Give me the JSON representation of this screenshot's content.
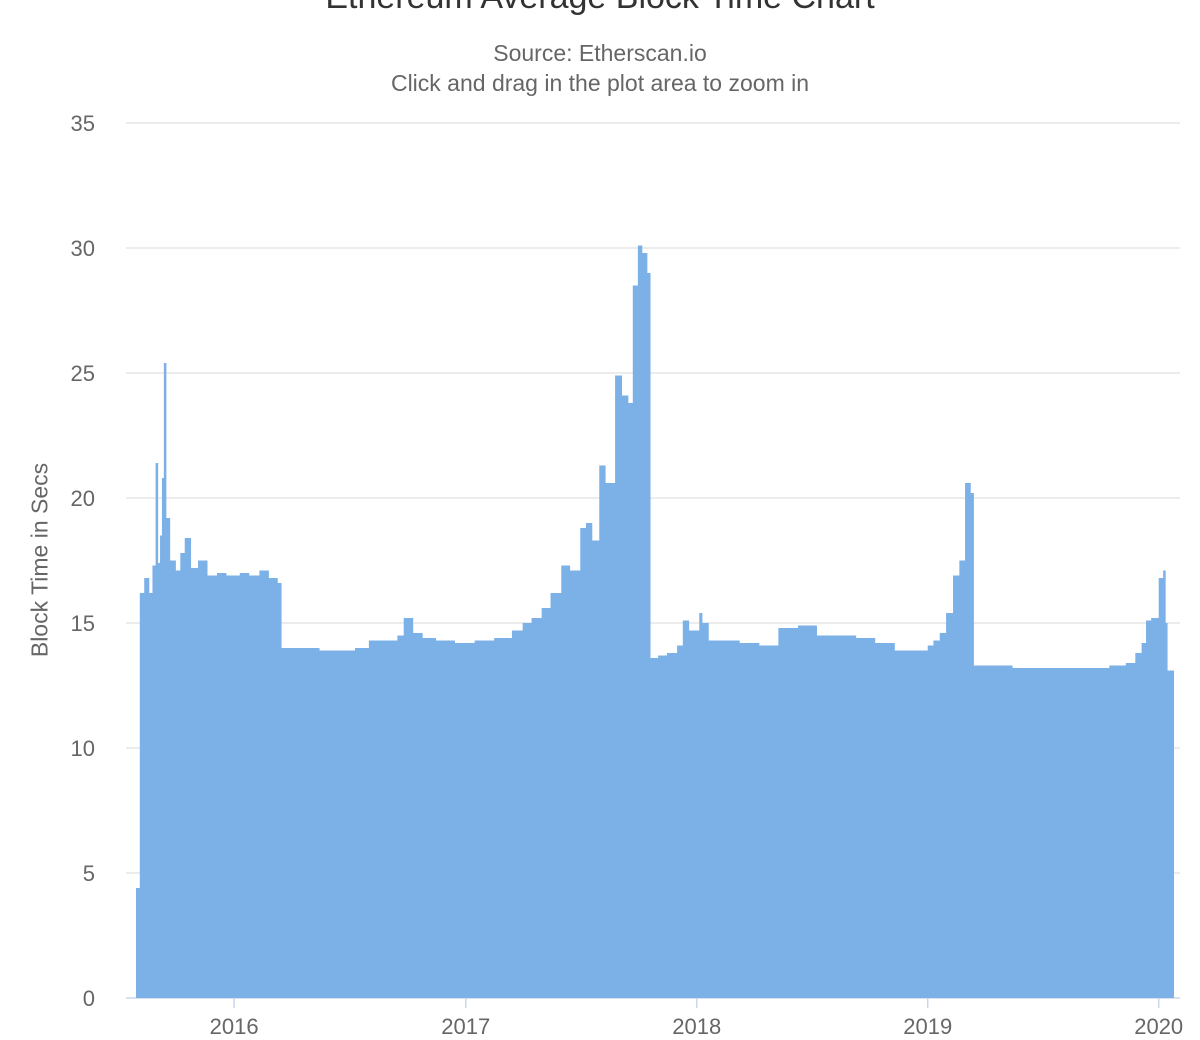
{
  "chart_data": {
    "type": "area",
    "title": "Ethereum Average Block Time Chart",
    "subtitle": "Source: Etherscan.io",
    "subtitle2": "Click and drag in the plot area to zoom in",
    "xlabel": "",
    "ylabel": "Block Time in Secs",
    "ylim": [
      0,
      35
    ],
    "yticks": [
      0,
      5,
      10,
      15,
      20,
      25,
      30,
      35
    ],
    "xticks": [
      "2016",
      "2017",
      "2018",
      "2019",
      "2020"
    ],
    "xlim": [
      "2015-07-30",
      "2020-01-22"
    ],
    "grid": true,
    "legend": "none",
    "color": "#7cb1e8",
    "series": [
      {
        "x": [
          "2015-07-30",
          "2015-08-05",
          "2015-08-12",
          "2015-08-20",
          "2015-08-25",
          "2015-08-30",
          "2015-09-03",
          "2015-09-06",
          "2015-09-09",
          "2015-09-12",
          "2015-09-16",
          "2015-09-22",
          "2015-10-01",
          "2015-10-08",
          "2015-10-15",
          "2015-10-25",
          "2015-11-05",
          "2015-11-20",
          "2015-12-05",
          "2015-12-20",
          "2016-01-10",
          "2016-01-25",
          "2016-02-10",
          "2016-02-25",
          "2016-03-10",
          "2016-03-16",
          "2016-04-15",
          "2016-05-15",
          "2016-06-15",
          "2016-07-10",
          "2016-08-01",
          "2016-08-20",
          "2016-09-15",
          "2016-09-25",
          "2016-10-10",
          "2016-10-25",
          "2016-11-15",
          "2016-12-15",
          "2017-01-15",
          "2017-02-15",
          "2017-03-15",
          "2017-04-01",
          "2017-04-15",
          "2017-05-01",
          "2017-05-15",
          "2017-06-01",
          "2017-06-15",
          "2017-07-01",
          "2017-07-10",
          "2017-07-20",
          "2017-07-31",
          "2017-08-10",
          "2017-08-25",
          "2017-09-05",
          "2017-09-15",
          "2017-09-22",
          "2017-09-30",
          "2017-10-07",
          "2017-10-15",
          "2017-10-20",
          "2017-11-01",
          "2017-11-15",
          "2017-12-01",
          "2017-12-10",
          "2017-12-20",
          "2018-01-05",
          "2018-01-10",
          "2018-01-20",
          "2018-02-10",
          "2018-03-10",
          "2018-04-10",
          "2018-05-10",
          "2018-06-10",
          "2018-07-10",
          "2018-08-10",
          "2018-09-10",
          "2018-10-10",
          "2018-11-10",
          "2018-12-10",
          "2019-01-01",
          "2019-01-10",
          "2019-01-20",
          "2019-01-30",
          "2019-02-10",
          "2019-02-20",
          "2019-03-01",
          "2019-03-10",
          "2019-03-15",
          "2019-04-15",
          "2019-05-15",
          "2019-06-15",
          "2019-07-15",
          "2019-08-15",
          "2019-09-15",
          "2019-10-15",
          "2019-11-10",
          "2019-11-25",
          "2019-12-05",
          "2019-12-12",
          "2019-12-20",
          "2020-01-01",
          "2020-01-08",
          "2020-01-12",
          "2020-01-15",
          "2020-01-22"
        ],
        "y": [
          4.4,
          16.2,
          16.8,
          16.2,
          17.3,
          21.4,
          17.4,
          18.5,
          20.8,
          25.4,
          19.2,
          17.5,
          17.1,
          17.8,
          18.4,
          17.2,
          17.5,
          16.9,
          17.0,
          16.9,
          17.0,
          16.9,
          17.1,
          16.8,
          16.6,
          14.0,
          14.0,
          13.9,
          13.9,
          14.0,
          14.3,
          14.3,
          14.5,
          15.2,
          14.6,
          14.4,
          14.3,
          14.2,
          14.3,
          14.4,
          14.7,
          15.0,
          15.2,
          15.6,
          16.2,
          17.3,
          17.1,
          18.8,
          19.0,
          18.3,
          21.3,
          20.6,
          24.9,
          24.1,
          23.8,
          28.5,
          30.1,
          29.8,
          29.0,
          13.6,
          13.7,
          13.8,
          14.1,
          15.1,
          14.7,
          15.4,
          15.0,
          14.3,
          14.3,
          14.2,
          14.1,
          14.8,
          14.9,
          14.5,
          14.5,
          14.4,
          14.2,
          13.9,
          13.9,
          14.1,
          14.3,
          14.6,
          15.4,
          16.9,
          17.5,
          20.6,
          20.2,
          13.3,
          13.3,
          13.2,
          13.2,
          13.2,
          13.2,
          13.2,
          13.3,
          13.4,
          13.8,
          14.2,
          15.1,
          15.2,
          16.8,
          17.1,
          15.0,
          13.1,
          13.1
        ]
      }
    ]
  }
}
